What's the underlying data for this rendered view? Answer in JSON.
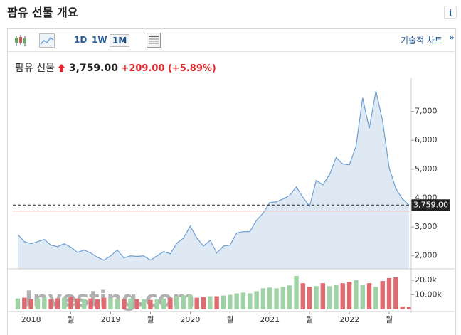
{
  "header": {
    "title": "팜유 선물 개요",
    "info": "i"
  },
  "toolbar": {
    "intervals": [
      "1D",
      "1W",
      "1M"
    ],
    "active_interval": "1M",
    "technical_chart": "기술적 차트",
    "more": "»"
  },
  "quote": {
    "name": "팜유 선물",
    "price": "3,759.00",
    "change": "+209.00",
    "change_percent": "(+5.89%)"
  },
  "chart_data": {
    "type": "area",
    "categories": [
      null,
      null,
      "2018",
      null,
      null,
      null,
      null,
      null,
      "월",
      null,
      null,
      null,
      null,
      null,
      "2019",
      null,
      null,
      null,
      null,
      null,
      "월",
      null,
      null,
      null,
      null,
      null,
      "2020",
      null,
      null,
      null,
      null,
      null,
      "월",
      null,
      null,
      null,
      null,
      null,
      "2021",
      null,
      null,
      null,
      null,
      null,
      "월",
      null,
      null,
      null,
      null,
      null,
      "2022",
      null,
      null,
      null,
      null,
      null,
      "월",
      null,
      null,
      null
    ],
    "values": [
      2740,
      2490,
      2420,
      2490,
      2570,
      2370,
      2320,
      2420,
      2300,
      2120,
      2200,
      2100,
      1950,
      1850,
      2000,
      2200,
      1930,
      2000,
      1980,
      2000,
      1850,
      2000,
      2150,
      2070,
      2440,
      2620,
      3030,
      2620,
      2340,
      2540,
      2100,
      2340,
      2370,
      2790,
      2840,
      2840,
      3230,
      3480,
      3850,
      3870,
      3970,
      4090,
      4390,
      4020,
      3720,
      4610,
      4460,
      4810,
      5400,
      5180,
      5150,
      5790,
      7470,
      6410,
      7710,
      6680,
      5050,
      4330,
      3970,
      3759
    ],
    "color": "#6d9fd3",
    "fill": "#dfe9f4",
    "ylim": [
      1550,
      7950
    ],
    "yticks": [
      {
        "value": 2000,
        "label": "2,000"
      },
      {
        "value": 3000,
        "label": "3,000"
      },
      {
        "value": 4000,
        "label": "4,000"
      },
      {
        "value": 5000,
        "label": "5,000"
      },
      {
        "value": 6000,
        "label": "6,000"
      },
      {
        "value": 7000,
        "label": "7,000"
      }
    ],
    "current": {
      "value": 3759,
      "label": "3,759.00"
    },
    "reference_line": 3550,
    "volume": {
      "values": [
        7500,
        8000,
        7000,
        7500,
        8000,
        7000,
        7500,
        8000,
        8500,
        7500,
        7000,
        7500,
        7000,
        8000,
        7500,
        7000,
        7000,
        7500,
        7000,
        7000,
        6500,
        7000,
        7500,
        8000,
        9000,
        9500,
        10000,
        8000,
        8500,
        9000,
        9000,
        9500,
        10000,
        11000,
        11500,
        11000,
        12500,
        14500,
        15000,
        14500,
        15500,
        16500,
        23000,
        18000,
        15500,
        16000,
        18000,
        16000,
        17000,
        18000,
        19000,
        20000,
        17000,
        18000,
        15500,
        19500,
        21500,
        22000,
        2000,
        1500
      ],
      "up_color": "#9fd3a6",
      "down_color": "#dd6b6f",
      "ylim": [
        0,
        25400
      ],
      "yticks": [
        {
          "value": 20000,
          "label": "20.0k"
        },
        {
          "value": 10000,
          "label": "10.00k"
        }
      ]
    },
    "watermark": "Investing.com"
  }
}
